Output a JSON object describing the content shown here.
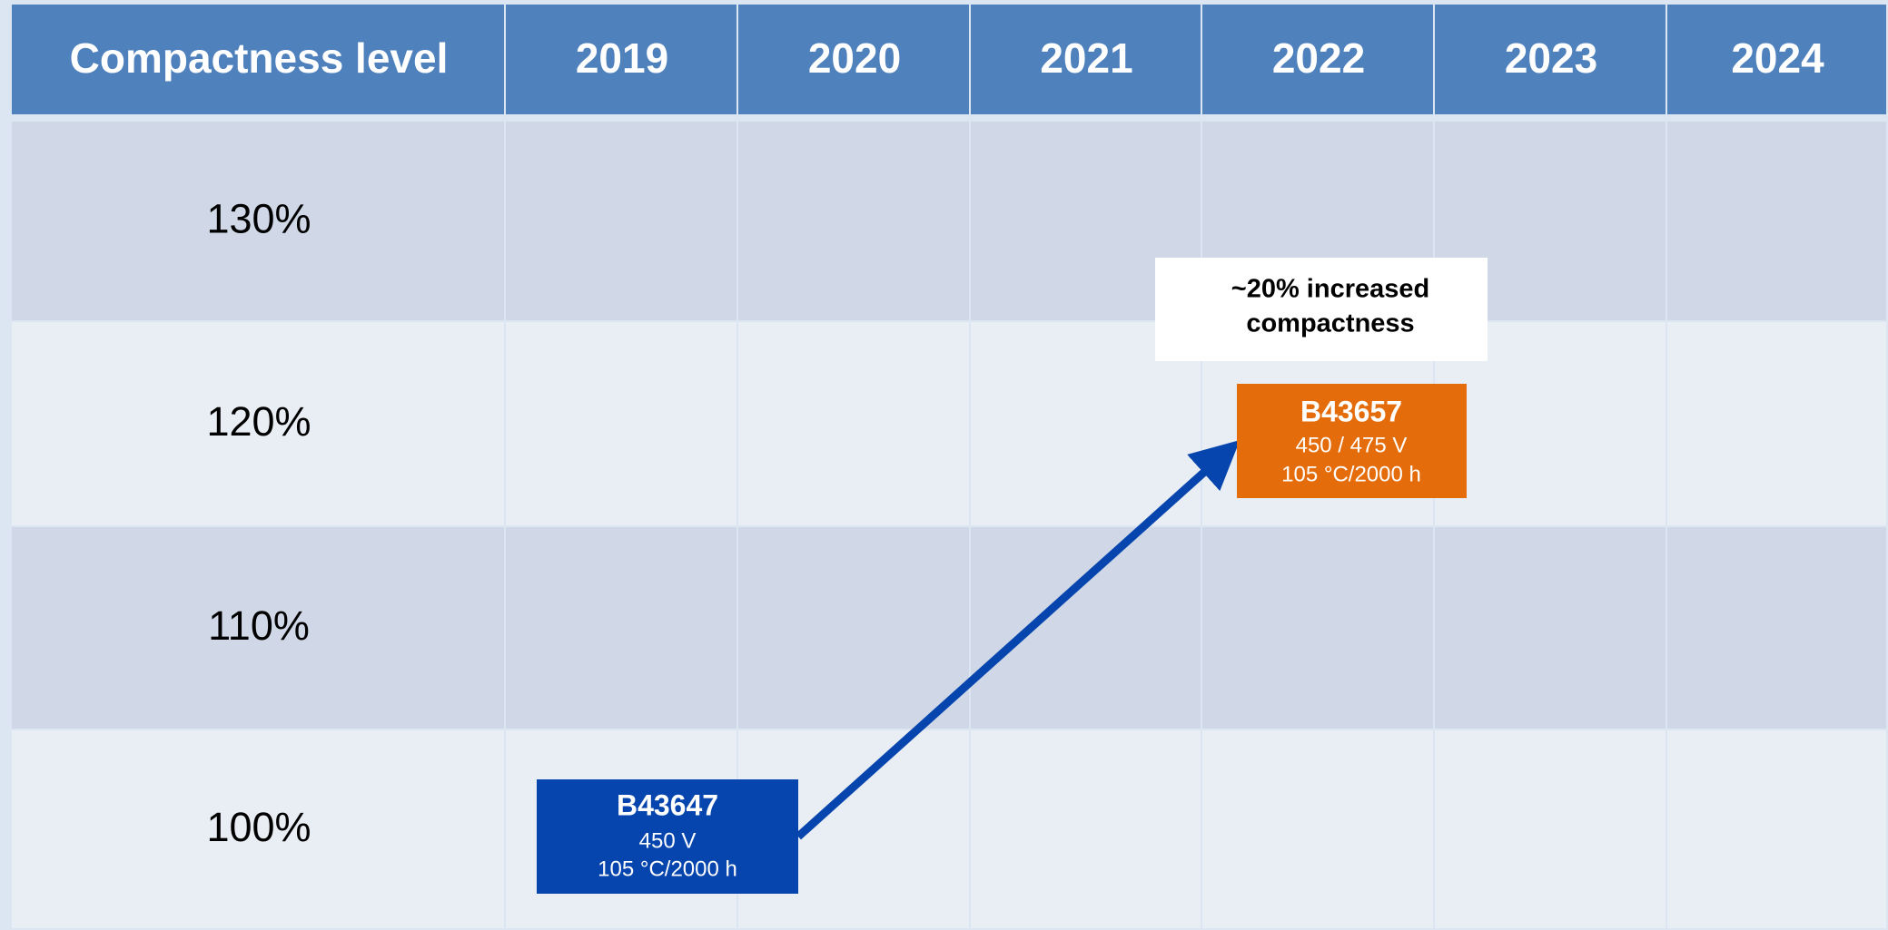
{
  "table": {
    "header": [
      "Compactness level",
      "2019",
      "2020",
      "2021",
      "2022",
      "2023",
      "2024"
    ],
    "rows": [
      "130%",
      "120%",
      "110%",
      "100%"
    ]
  },
  "products": [
    {
      "name": "B43647",
      "lines": [
        "450 V",
        "105 °C/2000 h"
      ]
    },
    {
      "name": "B43657",
      "lines": [
        "450 / 475 V",
        "105 °C/2000 h"
      ]
    }
  ],
  "annotation": [
    "~20% increased",
    "compactness"
  ]
}
